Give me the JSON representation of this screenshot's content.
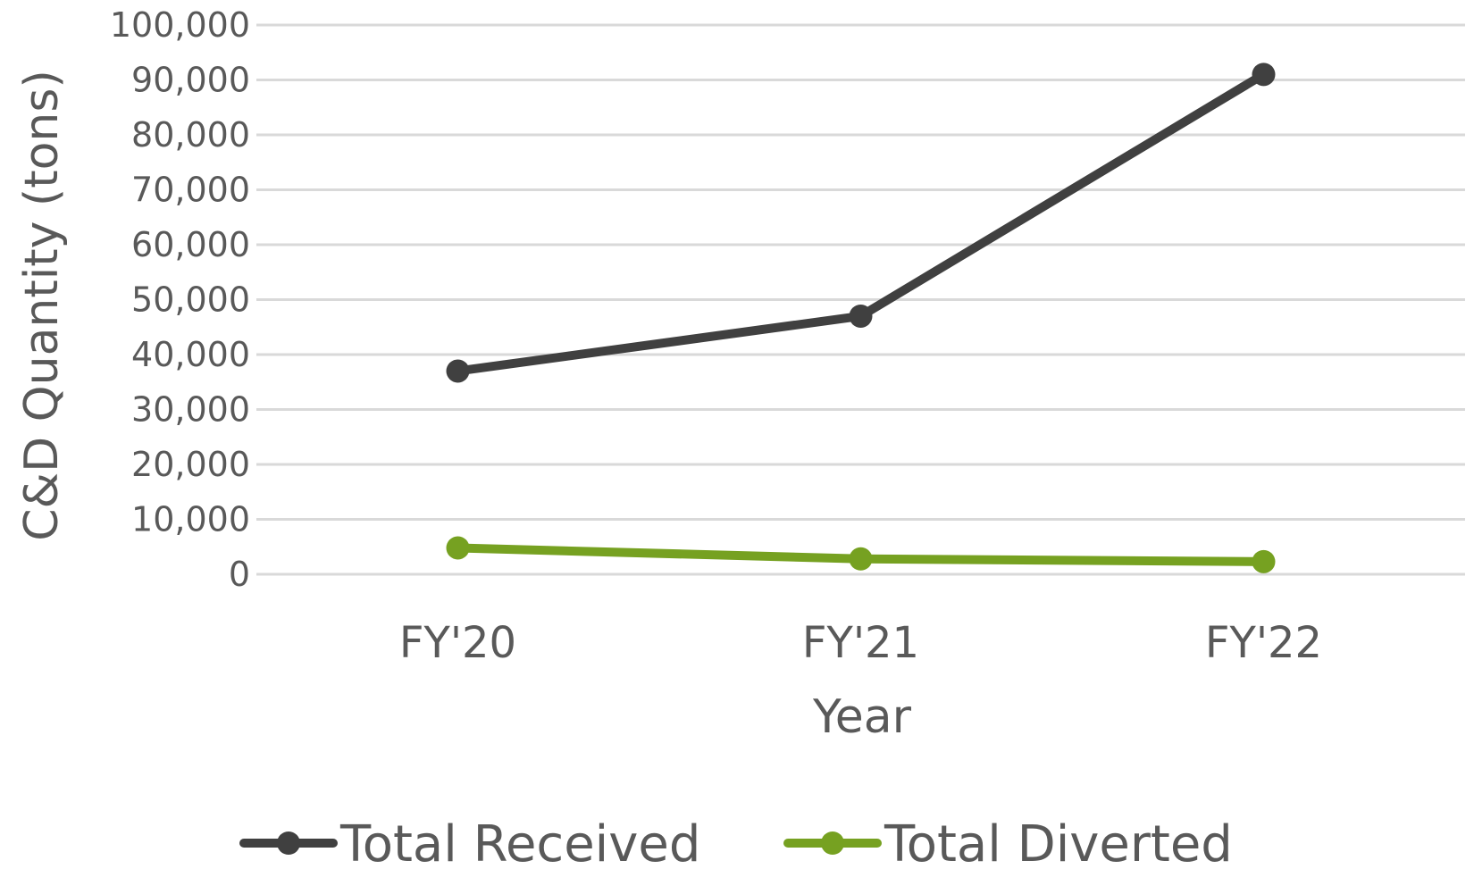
{
  "chart_data": {
    "type": "line",
    "categories": [
      "FY'20",
      "FY'21",
      "FY'22"
    ],
    "series": [
      {
        "name": "Total Received",
        "values": [
          37000,
          47000,
          91000
        ],
        "color": "#404040"
      },
      {
        "name": "Total Diverted",
        "values": [
          4800,
          2800,
          2300
        ],
        "color": "#76a121"
      }
    ],
    "xlabel": "Year",
    "ylabel": "C&D Quantity (tons)",
    "ylim": [
      0,
      100000
    ],
    "yticks": [
      0,
      10000,
      20000,
      30000,
      40000,
      50000,
      60000,
      70000,
      80000,
      90000,
      100000
    ],
    "ytick_labels": [
      "0",
      "10,000",
      "20,000",
      "30,000",
      "40,000",
      "50,000",
      "60,000",
      "70,000",
      "80,000",
      "90,000",
      "100,000"
    ],
    "grid": true,
    "legend_position": "bottom"
  }
}
